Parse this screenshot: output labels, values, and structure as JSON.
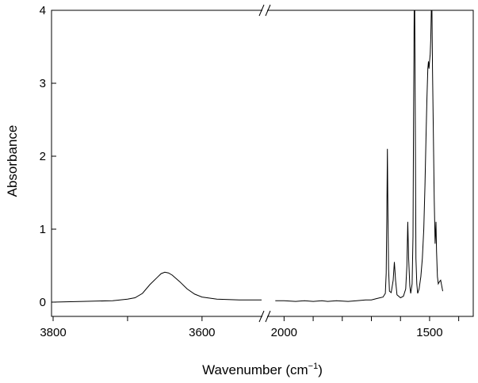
{
  "chart_data": {
    "type": "line",
    "title": "",
    "xlabel": "Wavenumber (cm",
    "xlabel_superscript": "−1",
    "xlabel_suffix": ")",
    "ylabel": "Absorbance",
    "ylim": [
      0,
      4
    ],
    "y_ticks": [
      0,
      1,
      2,
      3,
      4
    ],
    "x_tick_labels": [
      "3800",
      "3600",
      "2000",
      "1500"
    ],
    "x_axis_reversed": true,
    "x_axis_break": true,
    "x_segments": [
      {
        "range": [
          3800,
          3520
        ],
        "ticks": [
          3800,
          3700,
          3600,
          3500,
          3400,
          3300
        ]
      },
      {
        "range": [
          2050,
          1350
        ],
        "ticks": [
          2000,
          1900,
          1800,
          1700,
          1600,
          1500,
          1400
        ]
      }
    ],
    "grid": false,
    "series": [
      {
        "color": "#000000",
        "segment1": [
          [
            3800,
            0.0
          ],
          [
            3760,
            0.01
          ],
          [
            3720,
            0.02
          ],
          [
            3700,
            0.04
          ],
          [
            3690,
            0.06
          ],
          [
            3680,
            0.12
          ],
          [
            3670,
            0.24
          ],
          [
            3660,
            0.34
          ],
          [
            3655,
            0.39
          ],
          [
            3650,
            0.41
          ],
          [
            3645,
            0.4
          ],
          [
            3640,
            0.37
          ],
          [
            3630,
            0.28
          ],
          [
            3620,
            0.18
          ],
          [
            3610,
            0.11
          ],
          [
            3600,
            0.07
          ],
          [
            3580,
            0.04
          ],
          [
            3550,
            0.03
          ],
          [
            3520,
            0.03
          ]
        ],
        "segment2": [
          [
            2030,
            0.02
          ],
          [
            2000,
            0.02
          ],
          [
            1960,
            0.01
          ],
          [
            1930,
            0.02
          ],
          [
            1900,
            0.01
          ],
          [
            1870,
            0.02
          ],
          [
            1850,
            0.01
          ],
          [
            1820,
            0.02
          ],
          [
            1780,
            0.01
          ],
          [
            1750,
            0.02
          ],
          [
            1720,
            0.03
          ],
          [
            1700,
            0.03
          ],
          [
            1680,
            0.05
          ],
          [
            1660,
            0.07
          ],
          [
            1652,
            0.12
          ],
          [
            1649,
            0.4
          ],
          [
            1647,
            1.2
          ],
          [
            1645,
            2.1
          ],
          [
            1643,
            1.2
          ],
          [
            1641,
            0.45
          ],
          [
            1638,
            0.15
          ],
          [
            1632,
            0.13
          ],
          [
            1625,
            0.3
          ],
          [
            1621,
            0.55
          ],
          [
            1617,
            0.3
          ],
          [
            1612,
            0.1
          ],
          [
            1600,
            0.06
          ],
          [
            1590,
            0.08
          ],
          [
            1582,
            0.18
          ],
          [
            1578,
            0.5
          ],
          [
            1575,
            1.1
          ],
          [
            1572,
            0.6
          ],
          [
            1568,
            0.22
          ],
          [
            1565,
            0.12
          ],
          [
            1560,
            0.25
          ],
          [
            1557,
            0.9
          ],
          [
            1555,
            2.5
          ],
          [
            1553,
            4.0
          ],
          [
            1551,
            4.0
          ],
          [
            1549,
            2.5
          ],
          [
            1547,
            0.6
          ],
          [
            1544,
            0.25
          ],
          [
            1541,
            0.12
          ],
          [
            1536,
            0.18
          ],
          [
            1530,
            0.35
          ],
          [
            1525,
            0.6
          ],
          [
            1520,
            1.0
          ],
          [
            1516,
            1.6
          ],
          [
            1512,
            2.3
          ],
          [
            1509,
            2.8
          ],
          [
            1506,
            3.2
          ],
          [
            1504,
            3.3
          ],
          [
            1502,
            3.2
          ],
          [
            1500,
            3.3
          ],
          [
            1498,
            3.4
          ],
          [
            1496,
            3.6
          ],
          [
            1494,
            4.0
          ],
          [
            1492,
            4.0
          ],
          [
            1490,
            3.2
          ],
          [
            1487,
            2.3
          ],
          [
            1484,
            1.4
          ],
          [
            1481,
            0.8
          ],
          [
            1478,
            1.1
          ],
          [
            1476,
            0.7
          ],
          [
            1473,
            0.35
          ],
          [
            1470,
            0.25
          ],
          [
            1466,
            0.28
          ],
          [
            1462,
            0.3
          ],
          [
            1458,
            0.22
          ],
          [
            1455,
            0.15
          ]
        ]
      }
    ]
  }
}
